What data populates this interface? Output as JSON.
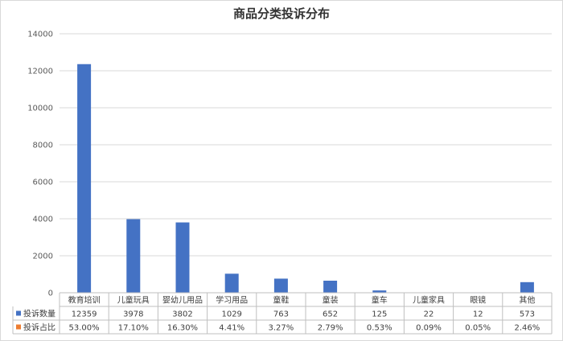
{
  "chart_data": {
    "type": "bar",
    "title": "商品分类投诉分布",
    "categories": [
      "教育培训",
      "儿童玩具",
      "婴幼儿用品",
      "学习用品",
      "童鞋",
      "童装",
      "童车",
      "儿童家具",
      "眼镜",
      "其他"
    ],
    "series": [
      {
        "name": "投诉数量",
        "values": [
          12359,
          3978,
          3802,
          1029,
          763,
          652,
          125,
          22,
          12,
          573
        ],
        "labels": [
          "12359",
          "3978",
          "3802",
          "1029",
          "763",
          "652",
          "125",
          "22",
          "12",
          "573"
        ],
        "color": "#4472c4"
      },
      {
        "name": "投诉占比",
        "values": [
          53.0,
          17.1,
          16.3,
          4.41,
          3.27,
          2.79,
          0.53,
          0.09,
          0.05,
          2.46
        ],
        "labels": [
          "53.00%",
          "17.10%",
          "16.30%",
          "4.41%",
          "3.27%",
          "2.79%",
          "0.53%",
          "0.09%",
          "0.05%",
          "2.46%"
        ],
        "color": "#ed7d31"
      }
    ],
    "yticks": [
      "0",
      "2000",
      "4000",
      "6000",
      "8000",
      "10000",
      "12000",
      "14000"
    ],
    "ylim": [
      0,
      14000
    ],
    "grid": true,
    "legend": "data-table"
  }
}
